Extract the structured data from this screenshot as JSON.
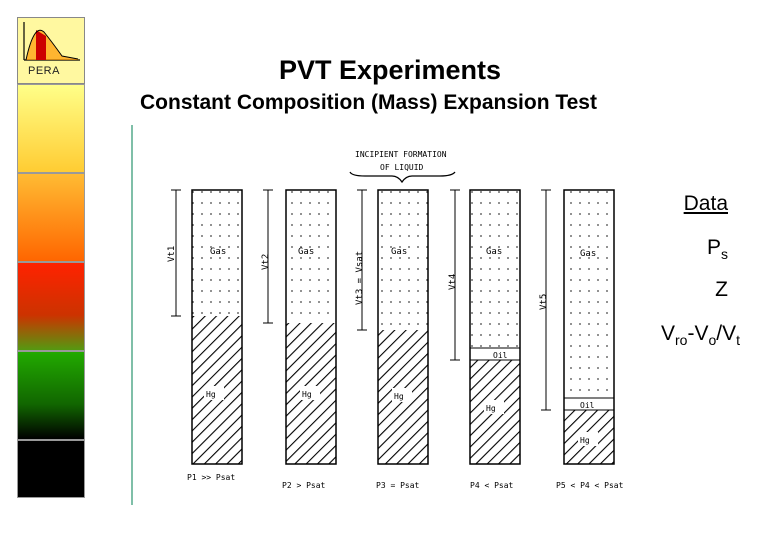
{
  "logo": {
    "text": "PERA"
  },
  "slide": {
    "title": "PVT Experiments",
    "subtitle": "Constant Composition (Mass) Expansion Test"
  },
  "figure": {
    "header_line1": "INCIPIENT FORMATION",
    "header_line2": "OF LIQUID",
    "gas_label": "Gas",
    "hg_label": "Hg",
    "oil_label": "Oil",
    "vt1": "Vt1",
    "vt2": "Vt2",
    "vt3": "Vt3 = Vsat",
    "vt4": "Vt4",
    "vt5": "Vt5",
    "p1": "P1 >> Psat",
    "p2": "P2 > Psat",
    "p3": "P3 = Psat",
    "p4": "P4 < Psat",
    "p5": "P5 < P4 < Psat"
  },
  "data_list": {
    "heading": "Data",
    "item1_main": "P",
    "item1_sub": "s",
    "item2": "Z",
    "item3_a": "V",
    "item3_a_sub": "ro",
    "item3_b": "-V",
    "item3_b_sub": "o",
    "item3_c": "/V",
    "item3_c_sub": "t"
  },
  "colors": {
    "yellow": "#ffff66",
    "orange": "#ff9900",
    "red": "#ff3300",
    "green": "#1a9900",
    "black": "#000000",
    "accent_line": "#7fbfa8"
  }
}
